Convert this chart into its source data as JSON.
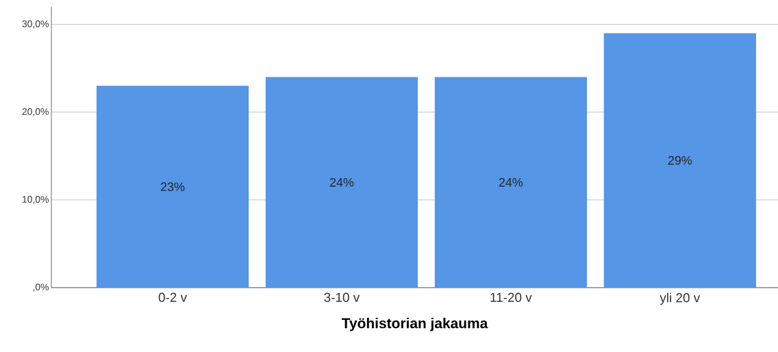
{
  "chart_data": {
    "type": "bar",
    "xlabel": "Työhistorian jakauma",
    "categories": [
      "0-2 v",
      "3-10 v",
      "11-20 v",
      "yli 20 v"
    ],
    "values": [
      23,
      24,
      24,
      29
    ],
    "value_labels": [
      "23%",
      "24%",
      "24%",
      "29%"
    ],
    "color": "#5596e6",
    "ylim": [
      0,
      32
    ],
    "yticks": [
      {
        "value": 0,
        "label": ",0%"
      },
      {
        "value": 10,
        "label": "10,0%"
      },
      {
        "value": 20,
        "label": "20,0%"
      },
      {
        "value": 30,
        "label": "30,0%"
      }
    ],
    "grid": "y"
  }
}
